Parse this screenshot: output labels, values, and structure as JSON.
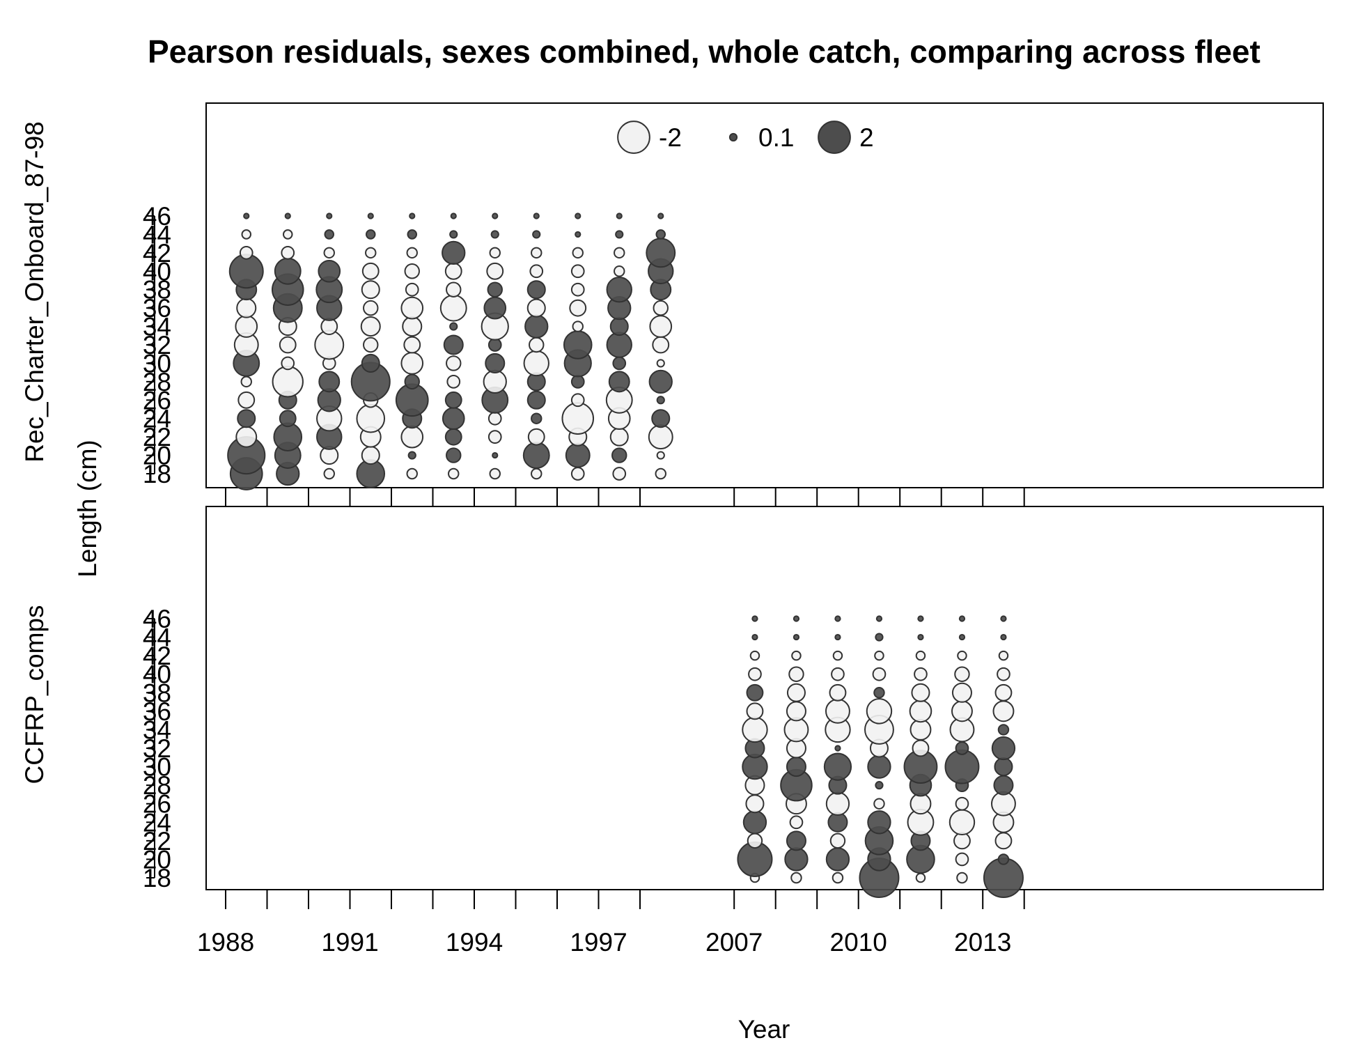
{
  "chart_data": {
    "type": "scatter",
    "title": "Pearson residuals, sexes combined, whole catch, comparing across fleet",
    "xlabel": "Year",
    "ylabel": "Length (cm)",
    "legend": {
      "placement": "top-center",
      "entries": [
        {
          "label": "-2",
          "value": -2
        },
        {
          "label": "0.1",
          "value": 0.1
        },
        {
          "label": "2",
          "value": 2
        }
      ]
    },
    "x_ticks": [
      1988,
      1989,
      1990,
      1991,
      1992,
      1993,
      1994,
      1995,
      1996,
      1997,
      1998,
      2007,
      2008,
      2009,
      2010,
      2011,
      2012,
      2013,
      2014
    ],
    "x_tick_labels": [
      "1988",
      "1991",
      "1994",
      "1997",
      "2007",
      "2010",
      "2013"
    ],
    "lengths": [
      18,
      20,
      22,
      24,
      26,
      28,
      30,
      32,
      34,
      36,
      38,
      40,
      42,
      44,
      46
    ],
    "y_tick_labels": [
      "18",
      "20",
      "22",
      "24",
      "26",
      "28",
      "30",
      "32",
      "34",
      "36",
      "38",
      "40",
      "42",
      "44",
      "46"
    ],
    "panels": [
      {
        "fleet": "Rec_Charter_Onboard_87-98",
        "series": [
          {
            "x": 1988.5,
            "residuals": [
              2.0,
              2.7,
              -0.8,
              0.6,
              -0.5,
              -0.2,
              1.3,
              -1.1,
              -0.9,
              -0.7,
              0.8,
              2.2,
              -0.3,
              -0.15,
              0.05
            ]
          },
          {
            "x": 1989.5,
            "residuals": [
              1.0,
              1.3,
              1.5,
              0.5,
              0.6,
              -1.8,
              -0.3,
              -0.5,
              -0.6,
              1.6,
              1.9,
              1.3,
              -0.3,
              -0.15,
              0.05
            ]
          },
          {
            "x": 1990.5,
            "residuals": [
              -0.2,
              -0.6,
              1.2,
              -1.2,
              1.0,
              0.8,
              -0.3,
              -1.6,
              -0.5,
              1.2,
              1.3,
              0.9,
              -0.2,
              0.15,
              0.05
            ]
          },
          {
            "x": 1991.5,
            "residuals": [
              1.5,
              -0.6,
              -0.8,
              -1.5,
              -0.4,
              2.9,
              0.6,
              -0.4,
              -0.7,
              -0.4,
              -0.6,
              -0.5,
              -0.2,
              0.15,
              0.05
            ]
          },
          {
            "x": 1992.5,
            "residuals": [
              -0.2,
              0.1,
              -0.9,
              0.7,
              2.0,
              0.4,
              -0.9,
              -0.5,
              -0.7,
              -0.9,
              -0.3,
              -0.4,
              -0.2,
              0.15,
              0.05
            ]
          },
          {
            "x": 1993.5,
            "residuals": [
              -0.2,
              0.4,
              0.5,
              0.9,
              0.5,
              -0.3,
              -0.4,
              0.7,
              0.1,
              -1.3,
              -0.4,
              -0.5,
              1.0,
              0.1,
              0.05
            ]
          },
          {
            "x": 1994.5,
            "residuals": [
              -0.2,
              0.05,
              -0.3,
              -0.3,
              1.3,
              -1.0,
              0.7,
              0.3,
              -1.4,
              0.9,
              0.4,
              -0.5,
              -0.2,
              0.1,
              0.05
            ]
          },
          {
            "x": 1995.5,
            "residuals": [
              -0.2,
              1.3,
              -0.5,
              0.2,
              0.6,
              0.6,
              -1.2,
              -0.4,
              1.0,
              -0.6,
              0.6,
              -0.3,
              -0.2,
              0.1,
              0.05
            ]
          },
          {
            "x": 1996.5,
            "residuals": [
              -0.3,
              1.1,
              -0.6,
              -1.9,
              -0.3,
              0.3,
              1.4,
              1.5,
              -0.2,
              -0.5,
              -0.3,
              -0.3,
              -0.2,
              0.05,
              0.05
            ]
          },
          {
            "x": 1997.5,
            "residuals": [
              -0.3,
              0.4,
              -0.6,
              -0.9,
              -1.3,
              0.8,
              0.3,
              1.2,
              0.6,
              1.0,
              1.2,
              -0.2,
              -0.2,
              0.1,
              0.05
            ]
          },
          {
            "x": 1998.5,
            "residuals": [
              -0.2,
              -0.1,
              -1.1,
              0.6,
              0.1,
              1.0,
              -0.1,
              -0.5,
              -0.9,
              -0.4,
              0.8,
              1.2,
              1.6,
              0.15,
              0.05
            ]
          }
        ]
      },
      {
        "fleet": "CCFRP_comps",
        "series": [
          {
            "x": 2007.5,
            "residuals": [
              -0.15,
              2.3,
              -0.4,
              1.0,
              -0.6,
              -0.7,
              1.2,
              0.7,
              -1.2,
              -0.5,
              0.5,
              -0.3,
              -0.15,
              0.05,
              0.05
            ]
          },
          {
            "x": 2008.5,
            "residuals": [
              -0.2,
              1.0,
              0.7,
              -0.3,
              -0.8,
              1.9,
              0.7,
              -0.7,
              -1.1,
              -0.7,
              -0.6,
              -0.4,
              -0.15,
              0.05,
              0.05
            ]
          },
          {
            "x": 2009.5,
            "residuals": [
              -0.2,
              1.0,
              -0.4,
              0.7,
              -1.0,
              0.6,
              1.4,
              0.05,
              -1.2,
              -1.1,
              -0.5,
              -0.3,
              -0.15,
              0.05,
              0.05
            ]
          },
          {
            "x": 2010.5,
            "residuals": [
              3.0,
              1.0,
              1.5,
              1.0,
              -0.2,
              0.1,
              1.0,
              -0.6,
              -1.6,
              -1.2,
              0.2,
              -0.3,
              -0.15,
              0.1,
              0.05
            ]
          },
          {
            "x": 2011.5,
            "residuals": [
              -0.15,
              1.5,
              0.7,
              -1.3,
              -0.8,
              0.9,
              2.1,
              -0.5,
              -0.8,
              -0.9,
              -0.6,
              -0.3,
              -0.15,
              0.05,
              0.05
            ]
          },
          {
            "x": 2012.5,
            "residuals": [
              -0.2,
              -0.3,
              -0.5,
              -1.2,
              -0.3,
              0.3,
              2.2,
              0.3,
              -1.1,
              -0.8,
              -0.7,
              -0.4,
              -0.15,
              0.05,
              0.05
            ]
          },
          {
            "x": 2013.5,
            "residuals": [
              3.0,
              0.2,
              -0.5,
              -0.8,
              -1.1,
              0.7,
              0.6,
              1.0,
              0.2,
              -0.8,
              -0.5,
              -0.3,
              -0.15,
              0.05,
              0.05
            ]
          }
        ]
      }
    ],
    "colors": {
      "positive_fill": "#4d4d4d",
      "negative_fill": "#f2f2f2",
      "stroke": "#333333",
      "axis": "#000000"
    }
  }
}
